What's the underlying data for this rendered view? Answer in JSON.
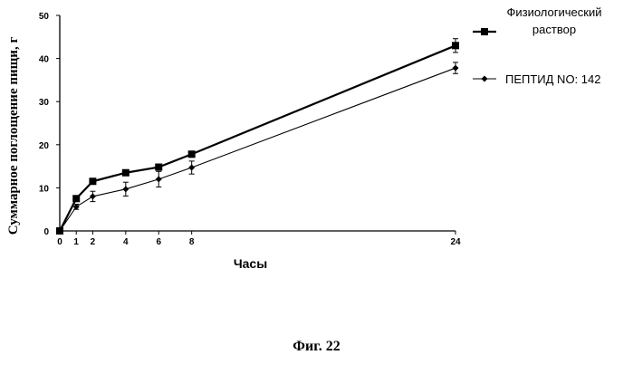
{
  "figure_caption": "Фиг. 22",
  "chart_data": {
    "type": "line",
    "title": "",
    "xlabel": "Часы",
    "ylabel": "Суммарное поглощение пищи, г",
    "x_ticks": [
      0,
      1,
      2,
      4,
      6,
      8,
      24
    ],
    "y_ticks": [
      0,
      10,
      20,
      30,
      40,
      50
    ],
    "xlim": [
      0,
      24
    ],
    "ylim": [
      0,
      50
    ],
    "grid": false,
    "legend_position": "right",
    "series": [
      {
        "name": "Физиологический раствор",
        "marker": "square",
        "x": [
          0,
          1,
          2,
          4,
          6,
          8,
          24
        ],
        "y": [
          0,
          7.5,
          11.5,
          13.5,
          14.8,
          17.8,
          43
        ],
        "err": [
          0,
          0.6,
          0.6,
          0.6,
          0.7,
          0.7,
          1.6
        ]
      },
      {
        "name": "ПЕПТИД NO: 142",
        "marker": "diamond",
        "x": [
          0,
          1,
          2,
          4,
          6,
          8,
          24
        ],
        "y": [
          0,
          5.6,
          8.0,
          9.7,
          12.0,
          14.7,
          37.8
        ],
        "err": [
          0,
          0.6,
          1.2,
          1.6,
          1.8,
          1.5,
          1.3
        ]
      }
    ]
  }
}
